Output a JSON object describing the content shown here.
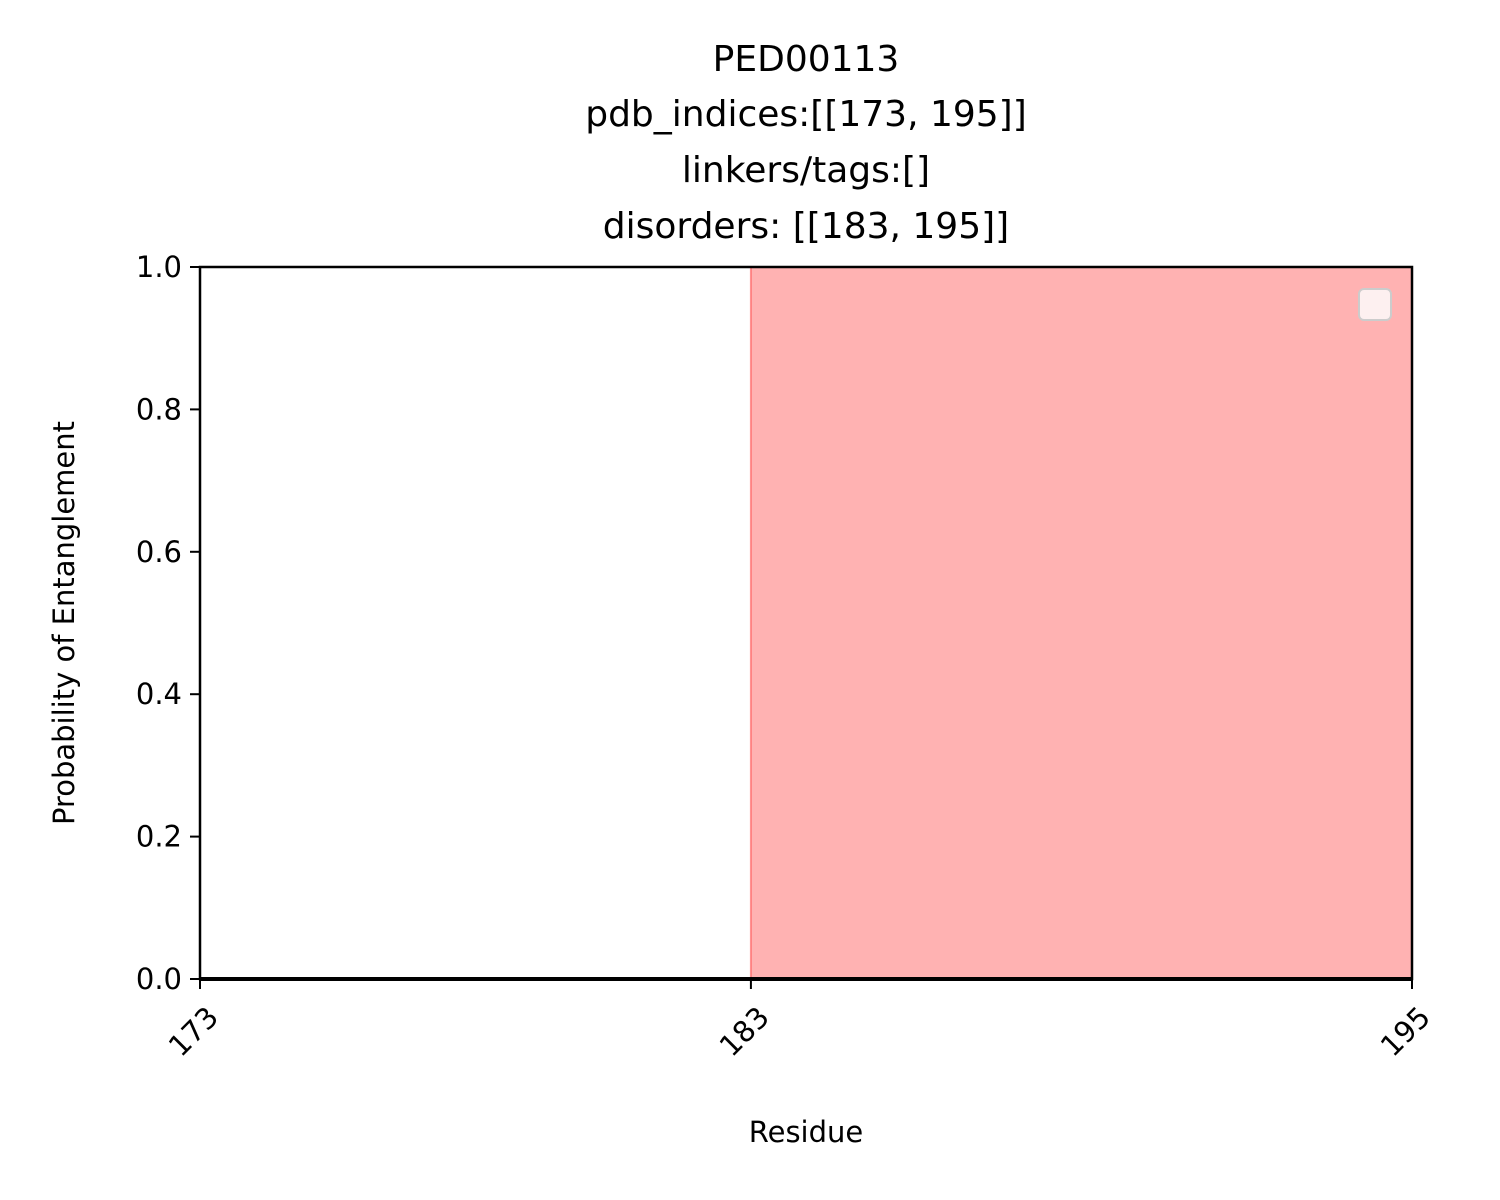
{
  "chart_data": {
    "type": "line",
    "title_lines": [
      "PED00113",
      "pdb_indices:[[173, 195]]",
      "linkers/tags:[]",
      "disorders: [[183, 195]]"
    ],
    "xlabel": "Residue",
    "ylabel": "Probability of Entanglement",
    "xlim": [
      173,
      195
    ],
    "ylim": [
      0,
      1
    ],
    "x_ticks": [
      173,
      183,
      195
    ],
    "x_tick_labels": [
      "173",
      "183",
      "195"
    ],
    "x_tick_rotation": 45,
    "y_ticks": [
      0.0,
      0.2,
      0.4,
      0.6,
      0.8,
      1.0
    ],
    "y_tick_labels": [
      "0.0",
      "0.2",
      "0.4",
      "0.6",
      "0.8",
      "1.0"
    ],
    "grid": false,
    "legend": {
      "placement": "upper right",
      "entries": []
    },
    "series": [
      {
        "x": [
          173,
          195
        ],
        "y": [
          0,
          0
        ],
        "color": "#000000"
      }
    ],
    "shaded_regions": [
      {
        "x_start": 183,
        "x_end": 195,
        "color": "#ff6666",
        "opacity": 0.5
      }
    ]
  }
}
